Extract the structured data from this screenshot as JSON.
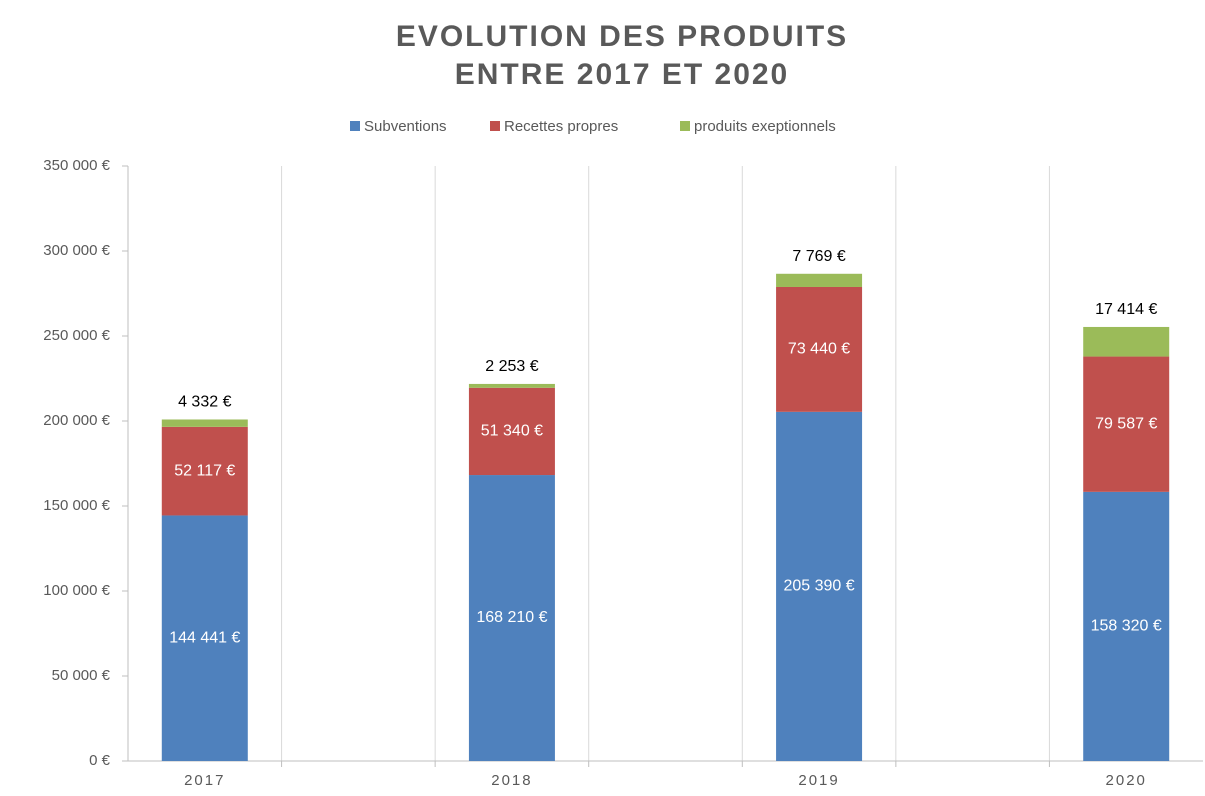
{
  "chart_data": {
    "type": "stacked_bar",
    "title": [
      "EVOLUTION DES PRODUITS",
      "ENTRE 2017 ET 2020"
    ],
    "categories": [
      "2017",
      null,
      "2018",
      null,
      "2019",
      null,
      "2020"
    ],
    "series": [
      {
        "name": "Subventions",
        "color": "#4f81bd",
        "values": [
          144441,
          null,
          168210,
          null,
          205390,
          null,
          158320
        ],
        "value_labels": [
          "144 441 €",
          null,
          "168 210 €",
          null,
          "205 390 €",
          null,
          "158 320 €"
        ]
      },
      {
        "name": "Recettes propres",
        "color": "#c0504d",
        "values": [
          52117,
          null,
          51340,
          null,
          73440,
          null,
          79587
        ],
        "value_labels": [
          "52 117 €",
          null,
          "51 340 €",
          null,
          "73 440 €",
          null,
          "79 587 €"
        ]
      },
      {
        "name": "produits exeptionnels",
        "color": "#9bbb59",
        "values": [
          4332,
          null,
          2253,
          null,
          7769,
          null,
          17414
        ],
        "value_labels": [
          "4 332 €",
          null,
          "2 253 €",
          null,
          "7 769 €",
          null,
          "17 414 €"
        ]
      }
    ],
    "ylim": [
      0,
      350000
    ],
    "yticks": [
      {
        "value": 0,
        "label": "0 €"
      },
      {
        "value": 50000,
        "label": "50 000 €"
      },
      {
        "value": 100000,
        "label": "100 000 €"
      },
      {
        "value": 150000,
        "label": "150 000 €"
      },
      {
        "value": 200000,
        "label": "200 000 €"
      },
      {
        "value": 250000,
        "label": "250 000 €"
      },
      {
        "value": 300000,
        "label": "300 000 €"
      },
      {
        "value": 350000,
        "label": "350 000 €"
      }
    ],
    "grid": true,
    "legend": "top"
  }
}
